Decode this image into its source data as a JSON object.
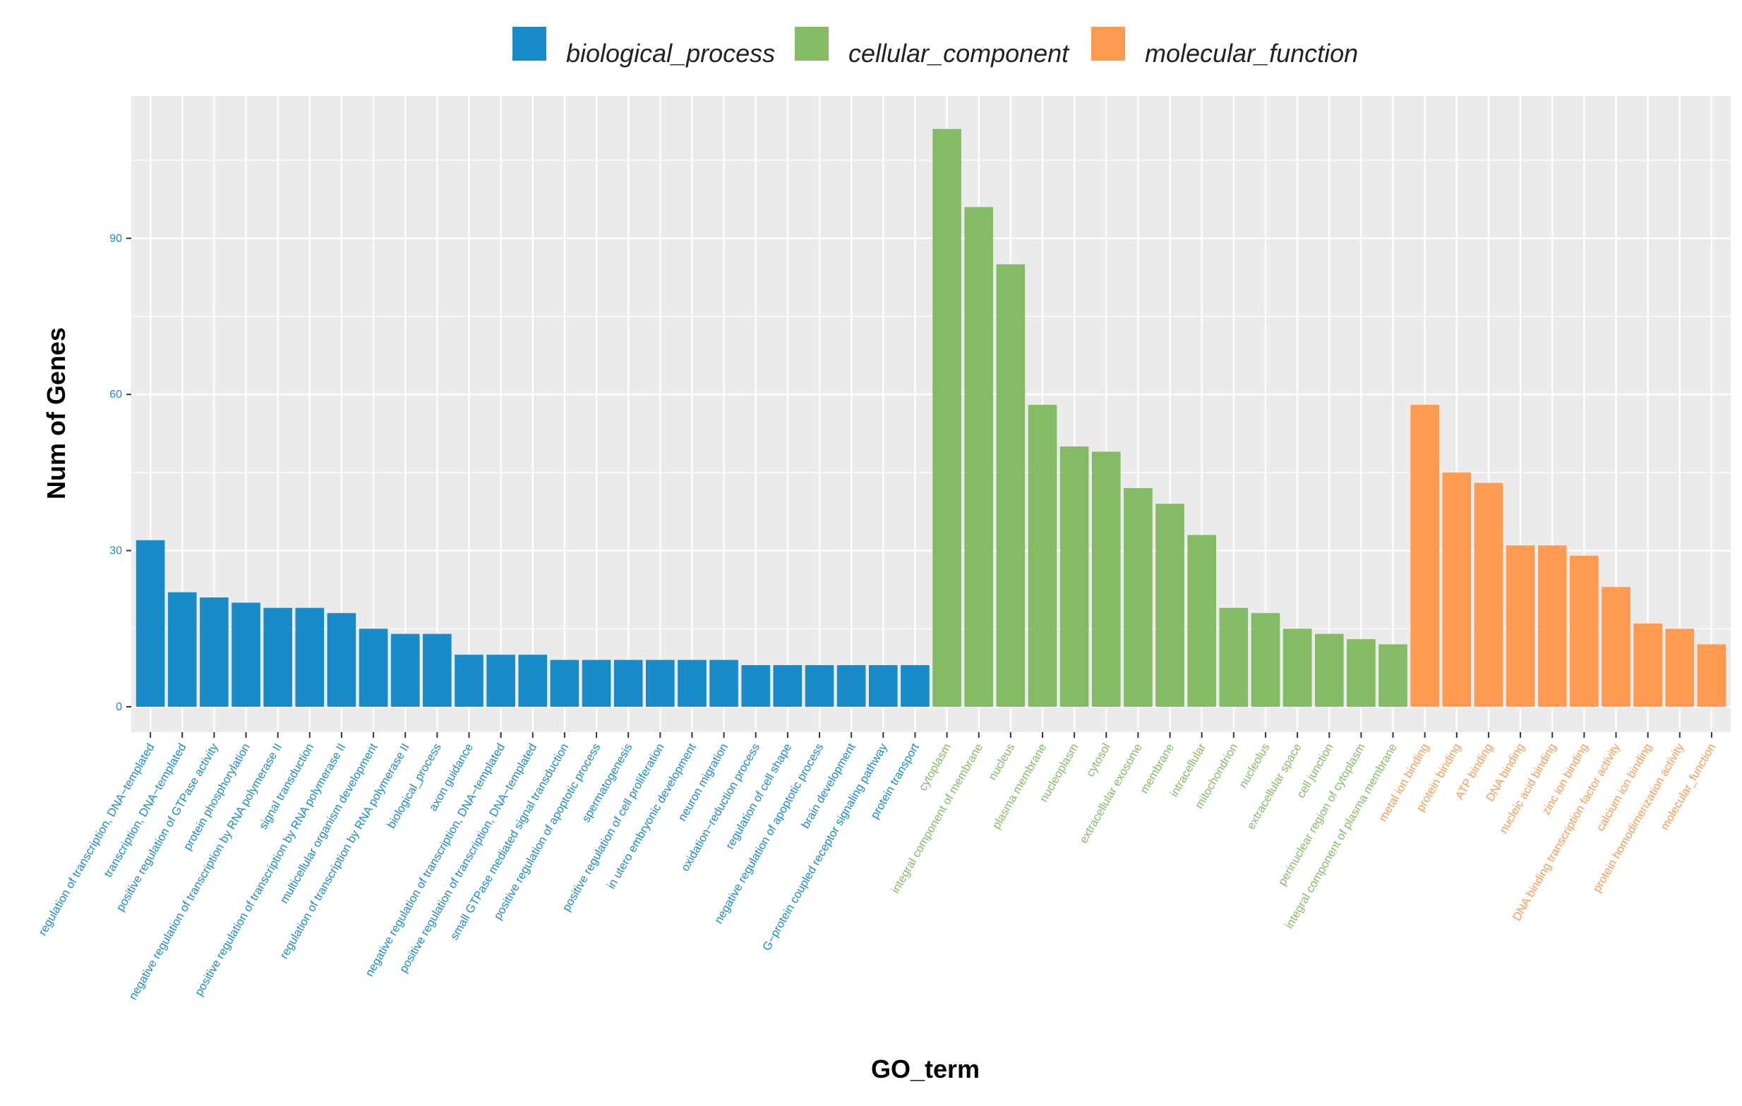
{
  "chart_data": {
    "type": "bar",
    "title": "",
    "xlabel": "GO_term",
    "ylabel": "Num of Genes",
    "ylim": [
      -4,
      118
    ],
    "yticks": [
      0,
      30,
      60,
      90
    ],
    "grid": true,
    "legend_position": "top",
    "colors": {
      "biological_process": "#1a8bc9",
      "cellular_component": "#86bb66",
      "molecular_function": "#ff9a52",
      "panel": "#ebebeb",
      "grid": "#ffffff"
    },
    "legend": [
      {
        "key": "biological_process",
        "label": "biological_process"
      },
      {
        "key": "cellular_component",
        "label": "cellular_component"
      },
      {
        "key": "molecular_function",
        "label": "molecular_function"
      }
    ],
    "bars": [
      {
        "term": "regulation of transcription, DNA−templated",
        "category": "biological_process",
        "value": 32
      },
      {
        "term": "transcription, DNA−templated",
        "category": "biological_process",
        "value": 22
      },
      {
        "term": "positive regulation of GTPase activity",
        "category": "biological_process",
        "value": 21
      },
      {
        "term": "protein phosphorylation",
        "category": "biological_process",
        "value": 20
      },
      {
        "term": "negative regulation of transcription by RNA polymerase II",
        "category": "biological_process",
        "value": 19
      },
      {
        "term": "signal transduction",
        "category": "biological_process",
        "value": 19
      },
      {
        "term": "positive regulation of transcription by RNA polymerase II",
        "category": "biological_process",
        "value": 18
      },
      {
        "term": "multicellular organism development",
        "category": "biological_process",
        "value": 15
      },
      {
        "term": "regulation of transcription by RNA polymerase II",
        "category": "biological_process",
        "value": 14
      },
      {
        "term": "biological_process",
        "category": "biological_process",
        "value": 14
      },
      {
        "term": "axon guidance",
        "category": "biological_process",
        "value": 10
      },
      {
        "term": "negative regulation of transcription, DNA−templated",
        "category": "biological_process",
        "value": 10
      },
      {
        "term": "positive regulation of transcription, DNA−templated",
        "category": "biological_process",
        "value": 10
      },
      {
        "term": "small GTPase mediated signal transduction",
        "category": "biological_process",
        "value": 9
      },
      {
        "term": "positive regulation of apoptotic process",
        "category": "biological_process",
        "value": 9
      },
      {
        "term": "spermatogenesis",
        "category": "biological_process",
        "value": 9
      },
      {
        "term": "positive regulation of cell proliferation",
        "category": "biological_process",
        "value": 9
      },
      {
        "term": "in utero embryonic development",
        "category": "biological_process",
        "value": 9
      },
      {
        "term": "neuron migration",
        "category": "biological_process",
        "value": 9
      },
      {
        "term": "oxidation−reduction process",
        "category": "biological_process",
        "value": 8
      },
      {
        "term": "regulation of cell shape",
        "category": "biological_process",
        "value": 8
      },
      {
        "term": "negative regulation of apoptotic process",
        "category": "biological_process",
        "value": 8
      },
      {
        "term": "brain development",
        "category": "biological_process",
        "value": 8
      },
      {
        "term": "G−protein coupled receptor signaling pathway",
        "category": "biological_process",
        "value": 8
      },
      {
        "term": "protein transport",
        "category": "biological_process",
        "value": 8
      },
      {
        "term": "cytoplasm",
        "category": "cellular_component",
        "value": 111
      },
      {
        "term": "integral component of membrane",
        "category": "cellular_component",
        "value": 96
      },
      {
        "term": "nucleus",
        "category": "cellular_component",
        "value": 85
      },
      {
        "term": "plasma membrane",
        "category": "cellular_component",
        "value": 58
      },
      {
        "term": "nucleoplasm",
        "category": "cellular_component",
        "value": 50
      },
      {
        "term": "cytosol",
        "category": "cellular_component",
        "value": 49
      },
      {
        "term": "extracellular exosome",
        "category": "cellular_component",
        "value": 42
      },
      {
        "term": "membrane",
        "category": "cellular_component",
        "value": 39
      },
      {
        "term": "intracellular",
        "category": "cellular_component",
        "value": 33
      },
      {
        "term": "mitochondrion",
        "category": "cellular_component",
        "value": 19
      },
      {
        "term": "nucleolus",
        "category": "cellular_component",
        "value": 18
      },
      {
        "term": "extracellular space",
        "category": "cellular_component",
        "value": 15
      },
      {
        "term": "cell junction",
        "category": "cellular_component",
        "value": 14
      },
      {
        "term": "perinuclear region of cytoplasm",
        "category": "cellular_component",
        "value": 13
      },
      {
        "term": "integral component of plasma membrane",
        "category": "cellular_component",
        "value": 12
      },
      {
        "term": "metal ion binding",
        "category": "molecular_function",
        "value": 58
      },
      {
        "term": "protein binding",
        "category": "molecular_function",
        "value": 45
      },
      {
        "term": "ATP binding",
        "category": "molecular_function",
        "value": 43
      },
      {
        "term": "DNA binding",
        "category": "molecular_function",
        "value": 31
      },
      {
        "term": "nucleic acid binding",
        "category": "molecular_function",
        "value": 31
      },
      {
        "term": "zinc ion binding",
        "category": "molecular_function",
        "value": 29
      },
      {
        "term": "DNA binding transcription factor activity",
        "category": "molecular_function",
        "value": 23
      },
      {
        "term": "calcium ion binding",
        "category": "molecular_function",
        "value": 16
      },
      {
        "term": "protein homodimerization activity",
        "category": "molecular_function",
        "value": 15
      },
      {
        "term": "molecular_function",
        "category": "molecular_function",
        "value": 12
      }
    ]
  }
}
